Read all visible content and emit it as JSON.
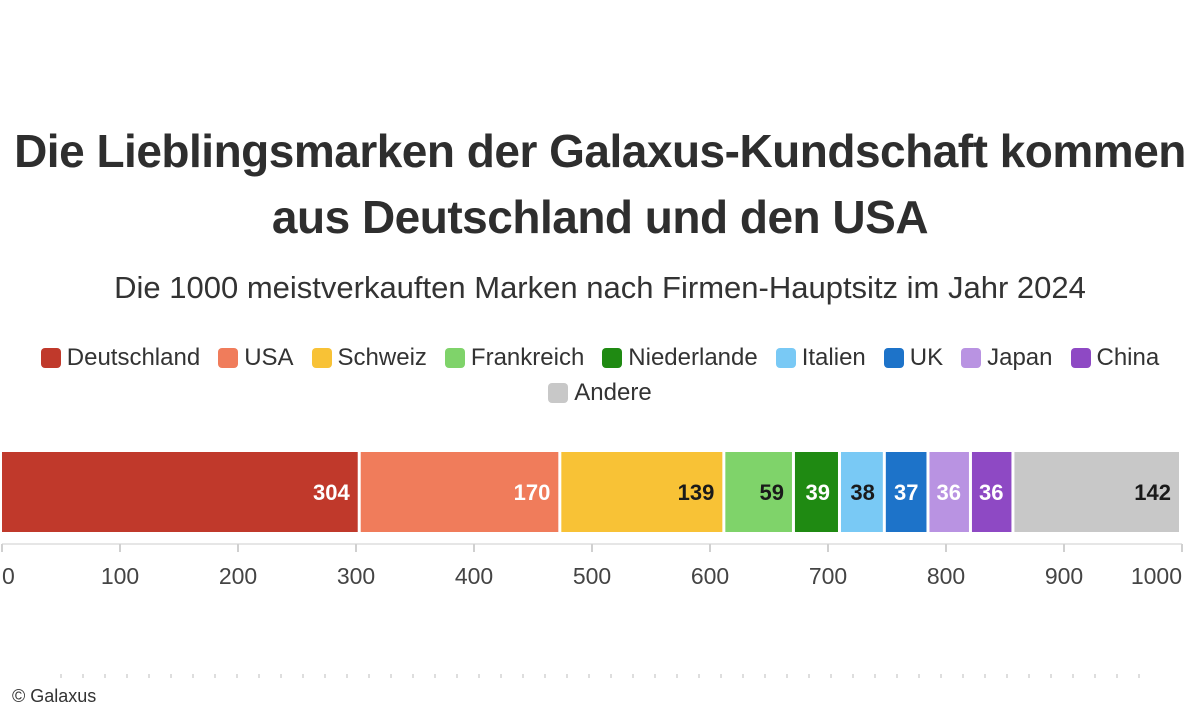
{
  "chart_data": {
    "type": "bar",
    "orientation": "horizontal-stacked",
    "title_lines": [
      "Die Lieblingsmarken der Galaxus-Kundschaft kommen",
      "aus Deutschland und den USA"
    ],
    "subtitle": "Die 1000 meistverkauften Marken nach Firmen-Hauptsitz im Jahr 2024",
    "legend_position": "top",
    "series": [
      {
        "name": "Deutschland",
        "value": 304,
        "color": "#c0392b",
        "label_color": "#ffffff"
      },
      {
        "name": "USA",
        "value": 170,
        "color": "#f07c5b",
        "label_color": "#ffffff"
      },
      {
        "name": "Schweiz",
        "value": 139,
        "color": "#f8c236",
        "label_color": "#1a1a1a"
      },
      {
        "name": "Frankreich",
        "value": 59,
        "color": "#7fd36a",
        "label_color": "#1a1a1a"
      },
      {
        "name": "Niederlande",
        "value": 39,
        "color": "#1f8a12",
        "label_color": "#ffffff"
      },
      {
        "name": "Italien",
        "value": 38,
        "color": "#79c9f5",
        "label_color": "#1a1a1a"
      },
      {
        "name": "UK",
        "value": 37,
        "color": "#1d73c9",
        "label_color": "#ffffff"
      },
      {
        "name": "Japan",
        "value": 36,
        "color": "#b993e2",
        "label_color": "#ffffff"
      },
      {
        "name": "China",
        "value": 36,
        "color": "#8e49c4",
        "label_color": "#ffffff"
      },
      {
        "name": "Andere",
        "value": 142,
        "color": "#c8c8c8",
        "label_color": "#1a1a1a"
      }
    ],
    "xlim": [
      0,
      1000
    ],
    "ticks": [
      0,
      100,
      200,
      300,
      400,
      500,
      600,
      700,
      800,
      900,
      1000
    ],
    "grid": false
  },
  "credit": "© Galaxus"
}
